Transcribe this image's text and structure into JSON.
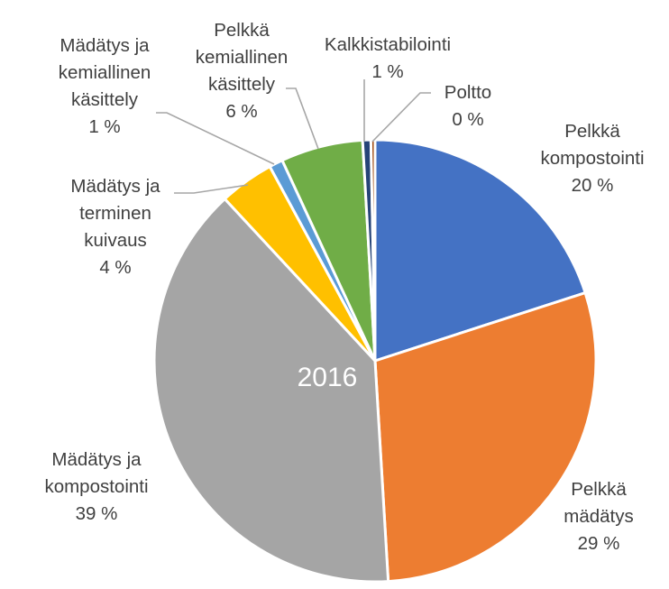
{
  "chart_data": {
    "type": "pie",
    "center_label": "2016",
    "slices": [
      {
        "name": "Pelkkä kompostointi",
        "label_lines": [
          "Pelkkä",
          "kompostointi"
        ],
        "value": 20,
        "value_label": "20 %",
        "color": "#4472C4"
      },
      {
        "name": "Pelkkä mädätys",
        "label_lines": [
          "Pelkkä",
          "mädätys"
        ],
        "value": 29,
        "value_label": "29 %",
        "color": "#ED7D31"
      },
      {
        "name": "Mädätys ja kompostointi",
        "label_lines": [
          "Mädätys ja",
          "kompostointi"
        ],
        "value": 39,
        "value_label": "39 %",
        "color": "#A5A5A5"
      },
      {
        "name": "Mädätys ja terminen kuivaus",
        "label_lines": [
          "Mädätys ja",
          "terminen",
          "kuivaus"
        ],
        "value": 4,
        "value_label": "4 %",
        "color": "#FFC000"
      },
      {
        "name": "Mädätys ja kemiallinen käsittely",
        "label_lines": [
          "Mädätys ja",
          "kemiallinen",
          "käsittely"
        ],
        "value": 1,
        "value_label": "1 %",
        "color": "#5B9BD5"
      },
      {
        "name": "Pelkkä kemiallinen käsittely",
        "label_lines": [
          "Pelkkä",
          "kemiallinen",
          "käsittely"
        ],
        "value": 6,
        "value_label": "6 %",
        "color": "#70AD47"
      },
      {
        "name": "Kalkkistabilointi",
        "label_lines": [
          "Kalkkistabilointi"
        ],
        "value": 0.6,
        "value_label": "1 %",
        "color": "#264478"
      },
      {
        "name": "Poltto",
        "label_lines": [
          "Poltto"
        ],
        "value": 0.3,
        "value_label": "0 %",
        "color": "#9E480E"
      }
    ]
  }
}
